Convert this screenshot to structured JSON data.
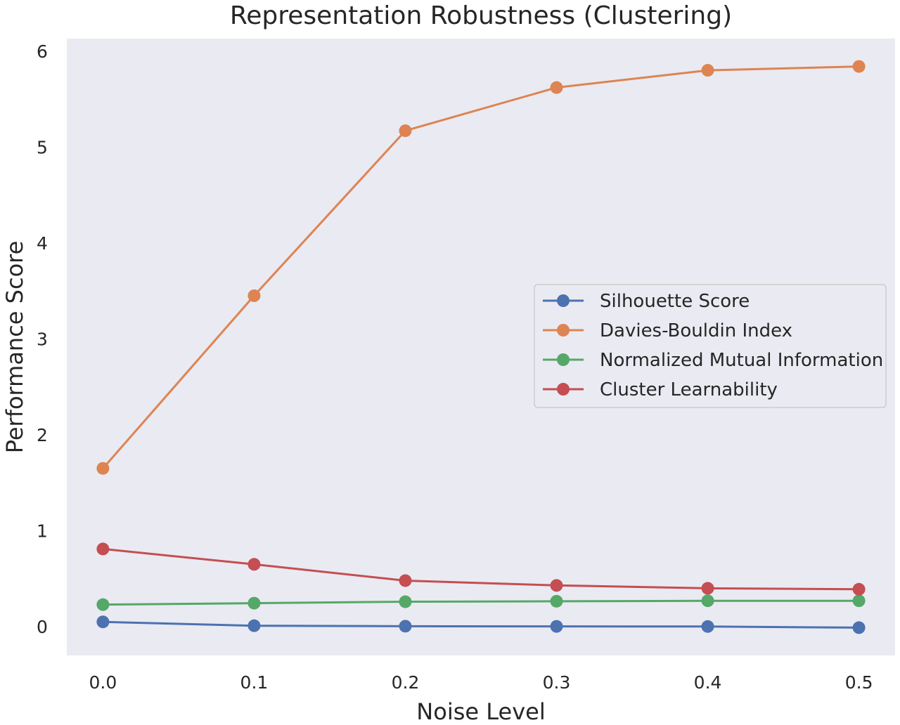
{
  "chart_data": {
    "type": "line",
    "title": "Representation Robustness (Clustering)",
    "xlabel": "Noise Level",
    "ylabel": "Performance Score",
    "x": [
      0.0,
      0.1,
      0.2,
      0.3,
      0.4,
      0.5
    ],
    "x_tick_labels": [
      "0.0",
      "0.1",
      "0.2",
      "0.3",
      "0.4",
      "0.5"
    ],
    "y_ticks": [
      0,
      1,
      2,
      3,
      4,
      5,
      6
    ],
    "y_tick_labels": [
      "0",
      "1",
      "2",
      "3",
      "4",
      "5",
      "6"
    ],
    "xlim": [
      -0.0239,
      0.5239
    ],
    "ylim": [
      -0.3,
      6.13
    ],
    "grid": false,
    "legend_position": "center-right",
    "background_color": "#eaeaf2",
    "series": [
      {
        "name": "Silhouette Score",
        "color": "#4c72b0",
        "values": [
          0.05,
          0.01,
          0.005,
          0.003,
          0.002,
          -0.01
        ]
      },
      {
        "name": "Davies-Bouldin Index",
        "color": "#dd8452",
        "values": [
          1.65,
          3.45,
          5.17,
          5.62,
          5.8,
          5.84
        ]
      },
      {
        "name": "Normalized Mutual Information",
        "color": "#55a868",
        "values": [
          0.23,
          0.245,
          0.26,
          0.265,
          0.27,
          0.27
        ]
      },
      {
        "name": "Cluster Learnability",
        "color": "#c44e52",
        "values": [
          0.81,
          0.65,
          0.48,
          0.43,
          0.4,
          0.39
        ]
      }
    ]
  }
}
